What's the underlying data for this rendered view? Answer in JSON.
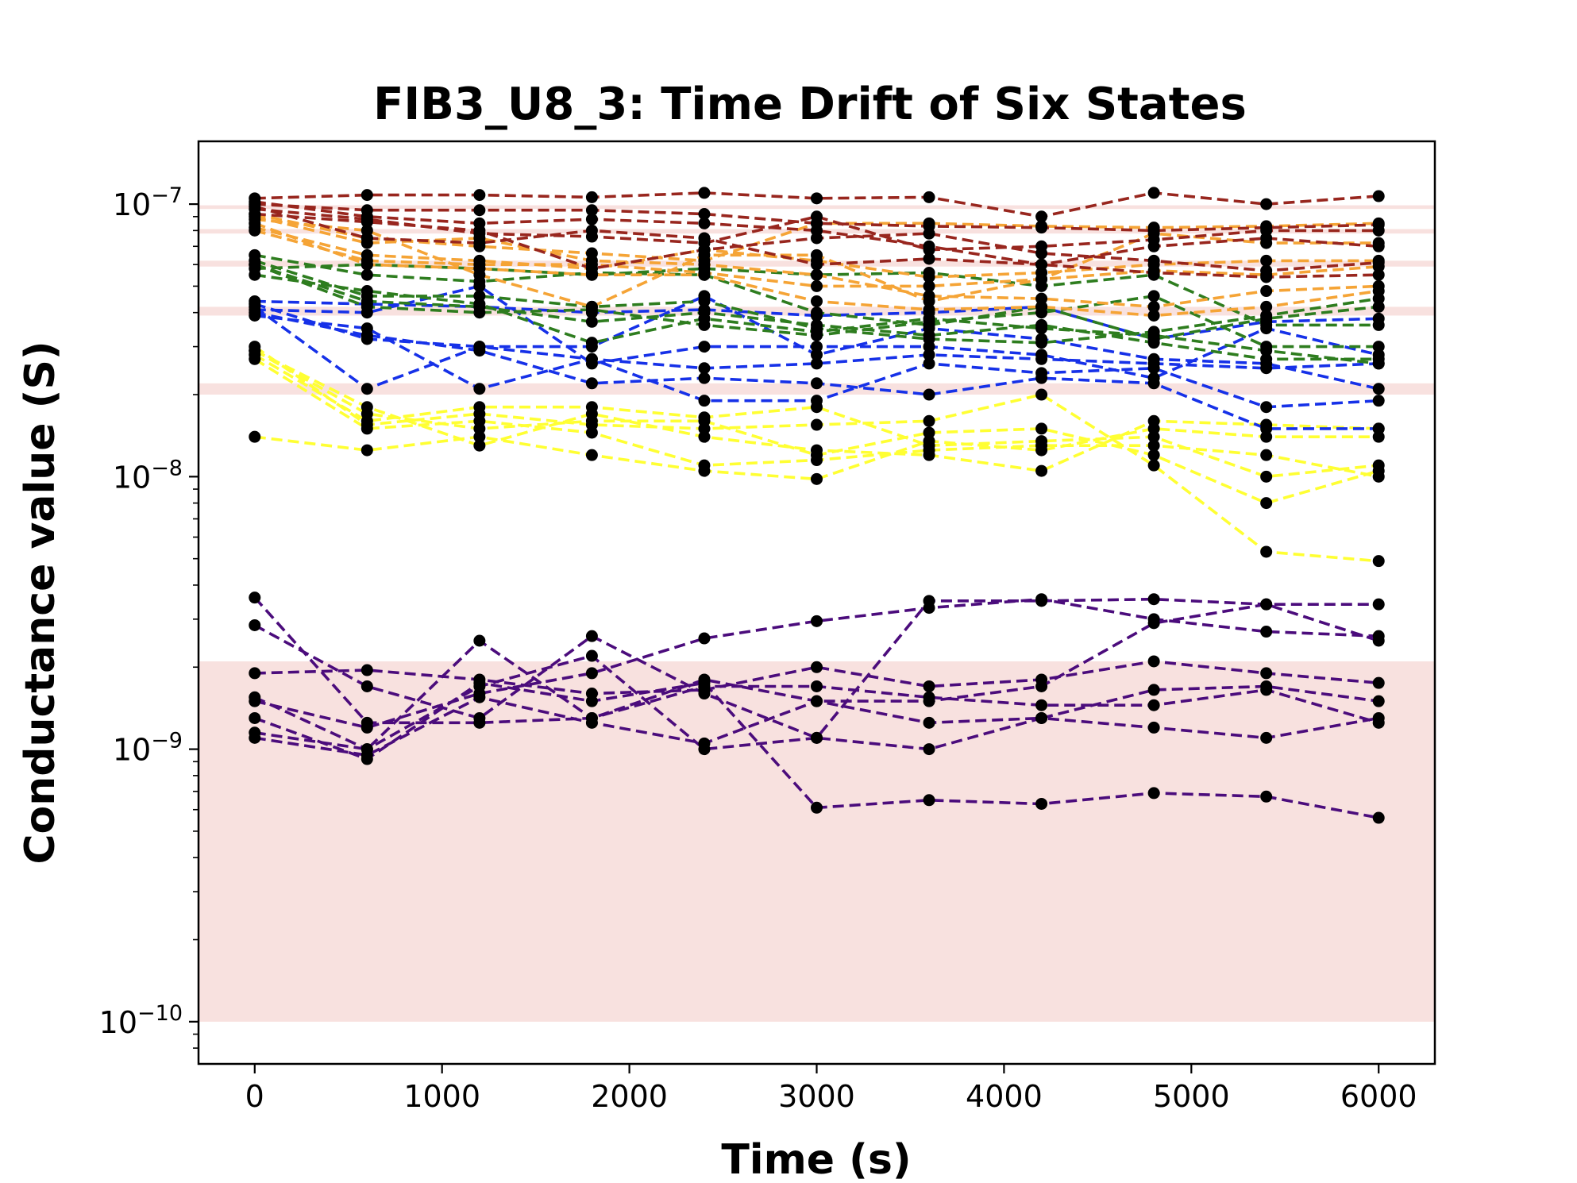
{
  "chart_data": {
    "type": "scatter",
    "title": "FIB3_U8_3: Time Drift of Six States",
    "xlabel": "Time (s)",
    "ylabel": "Conductance value (S)",
    "xlim": [
      -300,
      6300
    ],
    "ylim": [
      7e-11,
      1.7e-07
    ],
    "yscale": "log",
    "x_ticks": [
      0,
      1000,
      2000,
      3000,
      4000,
      5000,
      6000
    ],
    "y_ticks": [
      {
        "value": 1e-10,
        "base": "10",
        "exp": "−10"
      },
      {
        "value": 1e-09,
        "base": "10",
        "exp": "−9"
      },
      {
        "value": 1e-08,
        "base": "10",
        "exp": "−8"
      },
      {
        "value": 1e-07,
        "base": "10",
        "exp": "−7"
      }
    ],
    "grid": false,
    "marker_color": "#000000",
    "line_style": "dashed",
    "bands": [
      {
        "y0": 1e-10,
        "y1": 2.1e-09,
        "color": "#f8e1df"
      },
      {
        "y0": 2e-08,
        "y1": 2.2e-08,
        "color": "#f8e1df"
      },
      {
        "y0": 3.9e-08,
        "y1": 4.2e-08,
        "color": "#f8e1df"
      },
      {
        "y0": 5.9e-08,
        "y1": 6.2e-08,
        "color": "#f8e1df"
      },
      {
        "y0": 7.8e-08,
        "y1": 8.1e-08,
        "color": "#f8e1df"
      },
      {
        "y0": 9.6e-08,
        "y1": 9.9e-08,
        "color": "#f8e1df"
      }
    ],
    "x": [
      0,
      600,
      1200,
      1800,
      2400,
      3000,
      3600,
      4200,
      4800,
      5400,
      6000
    ],
    "series": [
      {
        "color": "#4b0c7c",
        "values": [
          3.6e-09,
          1.25e-09,
          1.25e-09,
          1.3e-09,
          1.8e-09,
          1.5e-09,
          1.5e-09,
          1.7e-09,
          2.9e-09,
          3.4e-09,
          2.5e-09
        ]
      },
      {
        "color": "#4b0c7c",
        "values": [
          2.85e-09,
          1.7e-09,
          1.3e-09,
          2.6e-09,
          1.6e-09,
          1.1e-09,
          1e-09,
          1.3e-09,
          1.2e-09,
          1.1e-09,
          1.3e-09
        ]
      },
      {
        "color": "#4b0c7c",
        "values": [
          1.9e-09,
          1.95e-09,
          1.8e-09,
          1.6e-09,
          1.65e-09,
          2e-09,
          1.7e-09,
          1.8e-09,
          2.1e-09,
          1.9e-09,
          1.75e-09
        ]
      },
      {
        "color": "#4b0c7c",
        "values": [
          1.55e-09,
          1e-09,
          1.7e-09,
          2.2e-09,
          1e-09,
          1.1e-09,
          3.5e-09,
          3.5e-09,
          3.55e-09,
          3.4e-09,
          3.4e-09
        ]
      },
      {
        "color": "#4b0c7c",
        "values": [
          1.5e-09,
          1.2e-09,
          1.6e-09,
          1.9e-09,
          2.55e-09,
          2.95e-09,
          3.3e-09,
          3.55e-09,
          3e-09,
          2.7e-09,
          2.6e-09
        ]
      },
      {
        "color": "#4b0c7c",
        "values": [
          1.3e-09,
          9.2e-10,
          1.75e-09,
          1.5e-09,
          1.75e-09,
          6.1e-10,
          6.5e-10,
          6.3e-10,
          6.9e-10,
          6.7e-10,
          5.6e-10
        ]
      },
      {
        "color": "#4b0c7c",
        "values": [
          1.15e-09,
          1e-09,
          2.5e-09,
          1.3e-09,
          1.7e-09,
          1.7e-09,
          1.55e-09,
          1.45e-09,
          1.45e-09,
          1.65e-09,
          1.25e-09
        ]
      },
      {
        "color": "#4b0c7c",
        "values": [
          1.1e-09,
          9.5e-10,
          1.55e-09,
          1.25e-09,
          1.05e-09,
          1.5e-09,
          1.25e-09,
          1.3e-09,
          1.65e-09,
          1.7e-09,
          1.5e-09
        ]
      },
      {
        "color": "#ffff33",
        "values": [
          2.9e-08,
          1.7e-08,
          1.5e-08,
          1.6e-08,
          1.6e-08,
          1.2e-08,
          1.45e-08,
          1.5e-08,
          1.2e-08,
          8e-09,
          1.05e-08
        ]
      },
      {
        "color": "#ffff33",
        "values": [
          2.8e-08,
          1.6e-08,
          1.8e-08,
          1.8e-08,
          1.65e-08,
          1.8e-08,
          1.3e-08,
          1.35e-08,
          1.4e-08,
          1e-08,
          1.1e-08
        ]
      },
      {
        "color": "#ffff33",
        "values": [
          3e-08,
          1.55e-08,
          1.7e-08,
          1.55e-08,
          1.5e-08,
          1.55e-08,
          1.6e-08,
          2e-08,
          1.1e-08,
          5.3e-09,
          4.9e-09
        ]
      },
      {
        "color": "#ffff33",
        "values": [
          2.7e-08,
          1.5e-08,
          1.6e-08,
          1.45e-08,
          1.1e-08,
          1.15e-08,
          1.25e-08,
          1.3e-08,
          1.3e-08,
          1.2e-08,
          1e-08
        ]
      },
      {
        "color": "#ffff33",
        "values": [
          1.4e-08,
          1.25e-08,
          1.4e-08,
          1.2e-08,
          1.05e-08,
          9.8e-09,
          1.35e-08,
          1.25e-08,
          1.5e-08,
          1.4e-08,
          1.4e-08
        ]
      },
      {
        "color": "#ffff33",
        "values": [
          2.9e-08,
          1.8e-08,
          1.3e-08,
          1.7e-08,
          1.4e-08,
          1.25e-08,
          1.2e-08,
          1.05e-08,
          1.6e-08,
          1.55e-08,
          1.5e-08
        ]
      },
      {
        "color": "#1631e8",
        "values": [
          4.4e-08,
          4.3e-08,
          4.2e-08,
          4e-08,
          4.1e-08,
          3.9e-08,
          4e-08,
          4.2e-08,
          3.2e-08,
          3.7e-08,
          3.8e-08
        ]
      },
      {
        "color": "#1631e8",
        "values": [
          4.2e-08,
          2.1e-08,
          3e-08,
          2.7e-08,
          2.5e-08,
          2.6e-08,
          2.8e-08,
          2.7e-08,
          2.6e-08,
          2.5e-08,
          2.6e-08
        ]
      },
      {
        "color": "#1631e8",
        "values": [
          4e-08,
          3.3e-08,
          2.9e-08,
          2.2e-08,
          2.3e-08,
          2.2e-08,
          2e-08,
          2.3e-08,
          2.2e-08,
          1.5e-08,
          1.5e-08
        ]
      },
      {
        "color": "#1631e8",
        "values": [
          3.9e-08,
          3.5e-08,
          2.1e-08,
          2.7e-08,
          1.9e-08,
          1.9e-08,
          2.6e-08,
          2.4e-08,
          2.5e-08,
          1.8e-08,
          1.9e-08
        ]
      },
      {
        "color": "#1631e8",
        "values": [
          4.1e-08,
          4e-08,
          5e-08,
          2.6e-08,
          3e-08,
          3e-08,
          3e-08,
          2.8e-08,
          2.3e-08,
          3.5e-08,
          2.8e-08
        ]
      },
      {
        "color": "#1631e8",
        "values": [
          4.3e-08,
          3.2e-08,
          3e-08,
          3e-08,
          4.6e-08,
          2.8e-08,
          3.5e-08,
          3.2e-08,
          2.7e-08,
          2.6e-08,
          2.1e-08
        ]
      },
      {
        "color": "#2e7d1f",
        "values": [
          6.5e-08,
          5.5e-08,
          5.2e-08,
          5.6e-08,
          5.5e-08,
          4e-08,
          3.6e-08,
          4.2e-08,
          3.2e-08,
          3.8e-08,
          4.2e-08
        ]
      },
      {
        "color": "#2e7d1f",
        "values": [
          6.2e-08,
          4.6e-08,
          4.6e-08,
          4.2e-08,
          4.4e-08,
          3.5e-08,
          3.2e-08,
          3.1e-08,
          3.4e-08,
          3.9e-08,
          4.5e-08
        ]
      },
      {
        "color": "#2e7d1f",
        "values": [
          6e-08,
          4.2e-08,
          4e-08,
          4.1e-08,
          3.6e-08,
          3.3e-08,
          3.7e-08,
          4e-08,
          4.6e-08,
          3e-08,
          3e-08
        ]
      },
      {
        "color": "#2e7d1f",
        "values": [
          5.8e-08,
          6e-08,
          5.8e-08,
          5.5e-08,
          5.8e-08,
          5.5e-08,
          5.6e-08,
          5e-08,
          5.5e-08,
          3.6e-08,
          3.6e-08
        ]
      },
      {
        "color": "#2e7d1f",
        "values": [
          5.5e-08,
          4.8e-08,
          4.3e-08,
          3.1e-08,
          3.8e-08,
          3.4e-08,
          3.8e-08,
          3.5e-08,
          3.3e-08,
          2.9e-08,
          2.6e-08
        ]
      },
      {
        "color": "#2e7d1f",
        "values": [
          6e-08,
          4.4e-08,
          4.2e-08,
          3.7e-08,
          4e-08,
          3.6e-08,
          3.3e-08,
          3.6e-08,
          3.1e-08,
          2.7e-08,
          2.7e-08
        ]
      },
      {
        "color": "#f5a436",
        "values": [
          9e-08,
          7.2e-08,
          7.5e-08,
          6.2e-08,
          6e-08,
          5.5e-08,
          4.6e-08,
          4.5e-08,
          4.2e-08,
          4.8e-08,
          5e-08
        ]
      },
      {
        "color": "#f5a436",
        "values": [
          8.5e-08,
          6e-08,
          5.8e-08,
          5.5e-08,
          5.5e-08,
          4.4e-08,
          4.1e-08,
          4.2e-08,
          3.9e-08,
          4.2e-08,
          4.8e-08
        ]
      },
      {
        "color": "#f5a436",
        "values": [
          8.2e-08,
          6.5e-08,
          6.2e-08,
          5.8e-08,
          6.8e-08,
          6.2e-08,
          5.4e-08,
          5.6e-08,
          6e-08,
          6.2e-08,
          6.2e-08
        ]
      },
      {
        "color": "#f5a436",
        "values": [
          8.8e-08,
          8e-08,
          5.5e-08,
          4.2e-08,
          6.5e-08,
          6.5e-08,
          4.4e-08,
          5.3e-08,
          7.8e-08,
          7.2e-08,
          7.2e-08
        ]
      },
      {
        "color": "#f5a436",
        "values": [
          9.2e-08,
          7.5e-08,
          7e-08,
          6.6e-08,
          6.2e-08,
          8.5e-08,
          8.5e-08,
          8.3e-08,
          8.2e-08,
          8.3e-08,
          8.5e-08
        ]
      },
      {
        "color": "#f5a436",
        "values": [
          8e-08,
          6.2e-08,
          6e-08,
          6e-08,
          5.6e-08,
          5e-08,
          5e-08,
          5.3e-08,
          5.7e-08,
          5.5e-08,
          5.9e-08
        ]
      },
      {
        "color": "#98261e",
        "values": [
          1.05e-07,
          1.08e-07,
          1.08e-07,
          1.06e-07,
          1.1e-07,
          1.05e-07,
          1.06e-07,
          9e-08,
          1.1e-07,
          1e-07,
          1.07e-07
        ]
      },
      {
        "color": "#98261e",
        "values": [
          1e-07,
          9.5e-08,
          9.5e-08,
          9.5e-08,
          9.2e-08,
          8.5e-08,
          8.3e-08,
          8.2e-08,
          8e-08,
          8.2e-08,
          8.4e-08
        ]
      },
      {
        "color": "#98261e",
        "values": [
          9.6e-08,
          8.8e-08,
          7.8e-08,
          7.6e-08,
          7.2e-08,
          9e-08,
          6.8e-08,
          7e-08,
          7.4e-08,
          8e-08,
          8e-08
        ]
      },
      {
        "color": "#98261e",
        "values": [
          9.8e-08,
          7.5e-08,
          7.2e-08,
          8e-08,
          7.5e-08,
          6e-08,
          6.3e-08,
          6e-08,
          5.6e-08,
          5.4e-08,
          5.5e-08
        ]
      },
      {
        "color": "#98261e",
        "values": [
          1.02e-07,
          9e-08,
          8.5e-08,
          8.8e-08,
          8.5e-08,
          8e-08,
          7e-08,
          6e-08,
          7e-08,
          7.5e-08,
          7e-08
        ]
      },
      {
        "color": "#98261e",
        "values": [
          9.2e-08,
          8.6e-08,
          8e-08,
          5.8e-08,
          6.8e-08,
          7.5e-08,
          7.8e-08,
          6.6e-08,
          6.2e-08,
          5.7e-08,
          6.1e-08
        ]
      }
    ]
  }
}
